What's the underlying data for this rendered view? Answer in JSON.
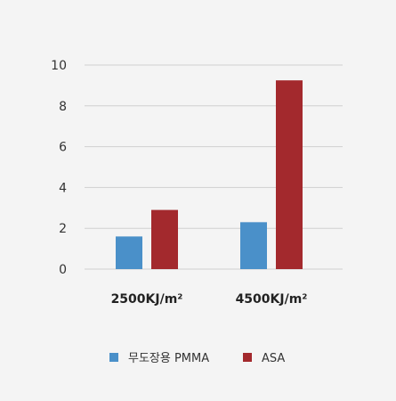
{
  "chart_data": {
    "type": "bar",
    "categories": [
      "2500KJ/m²",
      "4500KJ/m²"
    ],
    "series": [
      {
        "name": "무도장용 PMMA",
        "values": [
          1.6,
          2.3
        ],
        "color": "#4a90c9"
      },
      {
        "name": "ASA",
        "values": [
          2.9,
          9.25
        ],
        "color": "#a3292d"
      }
    ],
    "ylim": [
      0,
      10
    ],
    "yticks": [
      0,
      2,
      4,
      6,
      8,
      10
    ],
    "grid": true,
    "legend_position": "bottom"
  }
}
